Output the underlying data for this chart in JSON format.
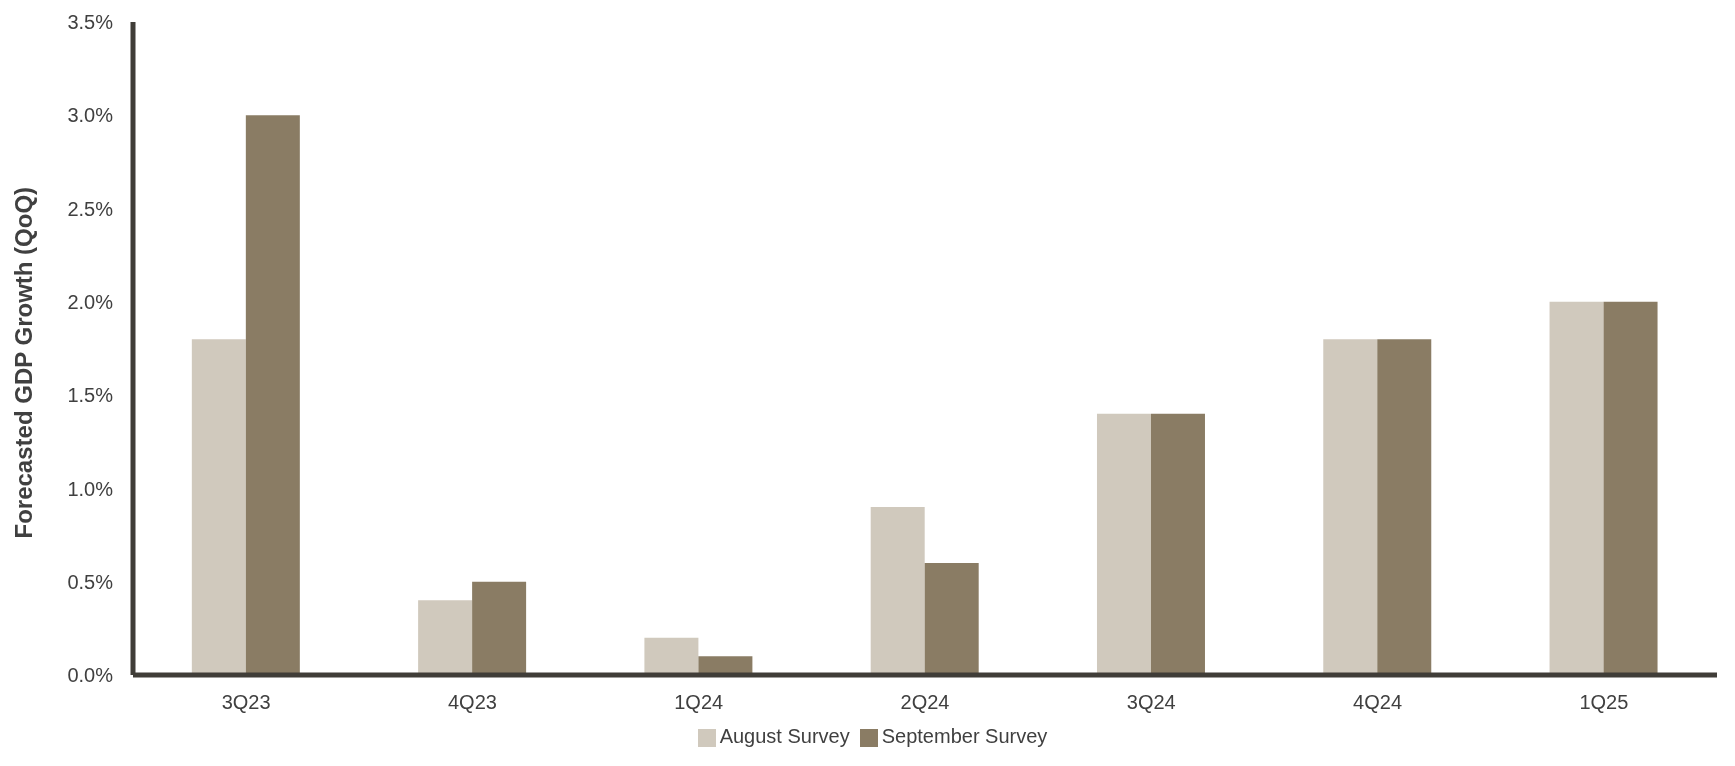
{
  "chart_data": {
    "type": "bar",
    "ylabel": "Forecasted GDP Growth (QoQ)",
    "categories": [
      "3Q23",
      "4Q23",
      "1Q24",
      "2Q24",
      "3Q24",
      "4Q24",
      "1Q25"
    ],
    "series": [
      {
        "name": "August Survey",
        "color": "#d0c9bd",
        "values": [
          1.8,
          0.4,
          0.2,
          0.9,
          1.4,
          1.8,
          2.0
        ]
      },
      {
        "name": "September Survey",
        "color": "#8a7c64",
        "values": [
          3.0,
          0.5,
          0.1,
          0.6,
          1.4,
          1.8,
          2.0
        ]
      }
    ],
    "ylim": [
      0,
      3.5
    ],
    "yticks": [
      {
        "value": 0,
        "label": "0.0%"
      },
      {
        "value": 0.5,
        "label": "0.5%"
      },
      {
        "value": 1,
        "label": "1.0%"
      },
      {
        "value": 1.5,
        "label": "1.5%"
      },
      {
        "value": 2,
        "label": "2.0%"
      },
      {
        "value": 2.5,
        "label": "2.5%"
      },
      {
        "value": 3,
        "label": "3.0%"
      },
      {
        "value": 3.5,
        "label": "3.5%"
      }
    ],
    "grid": false,
    "legend": "bottom"
  }
}
